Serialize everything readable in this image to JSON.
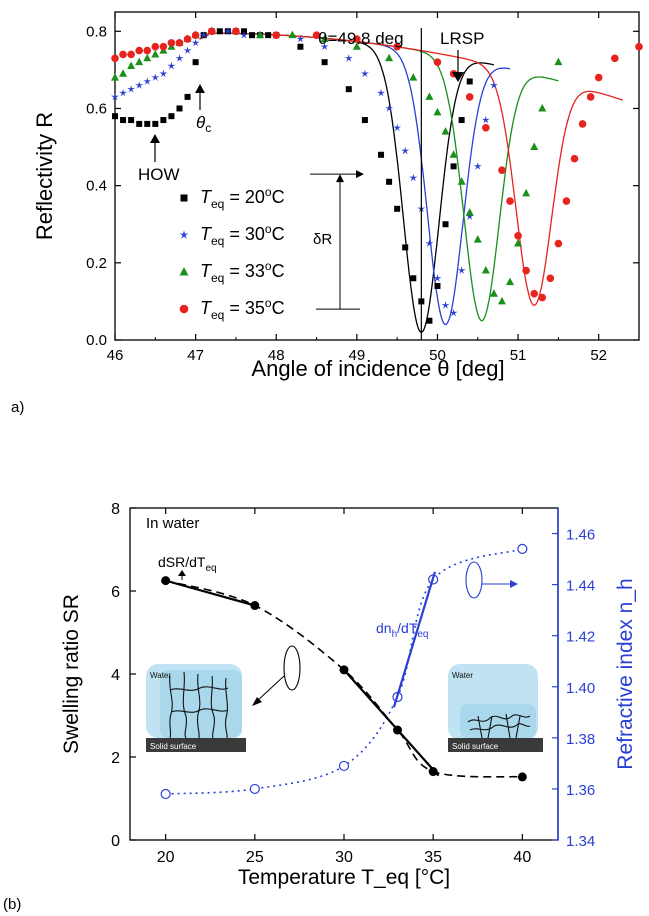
{
  "chart_data": [
    {
      "panel_label": "a)",
      "type": "scatter",
      "xlabel": "Angle of incidence θ [deg]",
      "ylabel": "Reflectivity R",
      "xlim": [
        46,
        52.5
      ],
      "ylim": [
        0.0,
        0.85
      ],
      "xticks": [
        "46",
        "47",
        "48",
        "49",
        "50",
        "51",
        "52"
      ],
      "yticks": [
        "0.0",
        "0.2",
        "0.4",
        "0.6",
        "0.8"
      ],
      "legend_position": "lower-left",
      "series": [
        {
          "name": "T_eq = 20°C",
          "label_text": "= 20",
          "marker": "square",
          "color": "#000000",
          "x": [
            46.0,
            46.1,
            46.2,
            46.3,
            46.4,
            46.5,
            46.6,
            46.7,
            46.8,
            46.9,
            47.0,
            47.1,
            47.2,
            47.3,
            47.4,
            47.5,
            47.6,
            47.7,
            47.8,
            47.9,
            48.0,
            48.3,
            48.6,
            48.9,
            49.1,
            49.3,
            49.4,
            49.5,
            49.6,
            49.7,
            49.8,
            49.9,
            50.0,
            50.1,
            50.2,
            50.3,
            50.4
          ],
          "y": [
            0.58,
            0.57,
            0.57,
            0.56,
            0.56,
            0.56,
            0.57,
            0.58,
            0.6,
            0.63,
            0.72,
            0.79,
            0.8,
            0.8,
            0.8,
            0.8,
            0.8,
            0.79,
            0.79,
            0.79,
            0.79,
            0.76,
            0.72,
            0.65,
            0.57,
            0.48,
            0.41,
            0.34,
            0.24,
            0.16,
            0.1,
            0.05,
            0.14,
            0.3,
            0.45,
            0.57,
            0.67
          ]
        },
        {
          "name": "T_eq = 30°C",
          "label_text": "= 30",
          "marker": "star",
          "color": "#2a3fd6",
          "x": [
            46.0,
            46.1,
            46.2,
            46.3,
            46.4,
            46.5,
            46.6,
            46.7,
            46.8,
            46.9,
            47.0,
            47.1,
            47.2,
            47.4,
            47.6,
            47.8,
            48.0,
            48.3,
            48.6,
            48.9,
            49.1,
            49.3,
            49.4,
            49.5,
            49.6,
            49.7,
            49.8,
            49.9,
            50.0,
            50.1,
            50.2,
            50.3,
            50.4,
            50.5,
            50.6,
            50.7
          ],
          "y": [
            0.63,
            0.64,
            0.65,
            0.66,
            0.67,
            0.68,
            0.69,
            0.71,
            0.73,
            0.75,
            0.77,
            0.79,
            0.8,
            0.8,
            0.79,
            0.79,
            0.79,
            0.78,
            0.76,
            0.73,
            0.69,
            0.64,
            0.6,
            0.55,
            0.49,
            0.42,
            0.34,
            0.25,
            0.16,
            0.09,
            0.07,
            0.18,
            0.32,
            0.45,
            0.57,
            0.66
          ]
        },
        {
          "name": "T_eq = 33°C",
          "label_text": "= 33",
          "marker": "triangle",
          "color": "#1a8f1a",
          "x": [
            46.0,
            46.1,
            46.2,
            46.3,
            46.4,
            46.5,
            46.6,
            46.7,
            46.8,
            46.9,
            47.0,
            47.2,
            47.5,
            47.8,
            48.2,
            48.6,
            49.0,
            49.4,
            49.7,
            49.9,
            50.0,
            50.1,
            50.2,
            50.3,
            50.4,
            50.5,
            50.6,
            50.7,
            50.8,
            50.9,
            51.0,
            51.1,
            51.2,
            51.3,
            51.5
          ],
          "y": [
            0.68,
            0.69,
            0.71,
            0.72,
            0.73,
            0.74,
            0.75,
            0.76,
            0.77,
            0.78,
            0.79,
            0.8,
            0.8,
            0.79,
            0.79,
            0.78,
            0.76,
            0.73,
            0.68,
            0.63,
            0.59,
            0.54,
            0.48,
            0.41,
            0.33,
            0.26,
            0.18,
            0.12,
            0.1,
            0.15,
            0.25,
            0.38,
            0.5,
            0.6,
            0.72
          ]
        },
        {
          "name": "T_eq = 35°C",
          "label_text": "= 35",
          "marker": "circle",
          "color": "#e8231e",
          "x": [
            46.0,
            46.1,
            46.2,
            46.3,
            46.4,
            46.5,
            46.6,
            46.7,
            46.8,
            46.9,
            47.0,
            47.2,
            47.5,
            48.0,
            48.5,
            49.0,
            49.5,
            50.0,
            50.2,
            50.4,
            50.6,
            50.8,
            50.9,
            51.0,
            51.1,
            51.2,
            51.3,
            51.4,
            51.5,
            51.6,
            51.7,
            51.8,
            51.9,
            52.0,
            52.2,
            52.5
          ],
          "y": [
            0.73,
            0.74,
            0.74,
            0.75,
            0.75,
            0.76,
            0.76,
            0.77,
            0.77,
            0.78,
            0.79,
            0.8,
            0.8,
            0.79,
            0.79,
            0.78,
            0.76,
            0.72,
            0.69,
            0.63,
            0.55,
            0.44,
            0.36,
            0.27,
            0.18,
            0.12,
            0.11,
            0.16,
            0.25,
            0.36,
            0.47,
            0.56,
            0.63,
            0.68,
            0.73,
            0.76
          ]
        }
      ],
      "fit_curves": [
        {
          "color": "#000000",
          "min_x": 49.8,
          "min_y": 0.02,
          "start_x": 47.05,
          "end_x": 50.7
        },
        {
          "color": "#2a3fd6",
          "min_x": 50.1,
          "min_y": 0.04,
          "start_x": 47.05,
          "end_x": 50.9
        },
        {
          "color": "#1a8f1a",
          "min_x": 50.55,
          "min_y": 0.05,
          "start_x": 47.05,
          "end_x": 51.5
        },
        {
          "color": "#e8231e",
          "min_x": 51.2,
          "min_y": 0.09,
          "start_x": 47.05,
          "end_x": 52.3
        }
      ],
      "legend_prefix": "T",
      "legend_subscript": "eq",
      "legend_unit": "C",
      "annotations": {
        "theta_line_label": "θ=49.8 deg",
        "theta_line_x": 49.8,
        "lrsp": "LRSP",
        "how": "HOW",
        "theta_c": "θ",
        "theta_c_sub": "c",
        "delta_r": "δR",
        "delta_r_top": 0.43,
        "delta_r_bottom": 0.08
      }
    },
    {
      "panel_label": "(b)",
      "type": "line",
      "xlabel": "Temperature T_eq [°C]",
      "ylabel_left": "Swelling ratio SR",
      "ylabel_right": "Refractive index n_h",
      "xlim": [
        18,
        42
      ],
      "ylim_left": [
        0,
        8
      ],
      "ylim_right": [
        1.34,
        1.47
      ],
      "xticks": [
        "20",
        "25",
        "30",
        "35",
        "40"
      ],
      "yticks_left": [
        "0",
        "2",
        "4",
        "6",
        "8"
      ],
      "yticks_right": [
        "1.34",
        "1.36",
        "1.38",
        "1.40",
        "1.42",
        "1.44",
        "1.46"
      ],
      "series": [
        {
          "name": "Swelling ratio SR",
          "axis": "left",
          "color": "#000000",
          "style": "dashed",
          "marker": "filled-circle",
          "x": [
            20,
            25,
            30,
            33,
            35,
            40
          ],
          "y": [
            6.25,
            5.65,
            4.1,
            2.65,
            1.65,
            1.52
          ]
        },
        {
          "name": "Refractive index n_h",
          "axis": "right",
          "color": "#2a3fd6",
          "style": "dotted",
          "marker": "open-circle",
          "x": [
            20,
            25,
            30,
            33,
            35,
            40
          ],
          "y": [
            1.358,
            1.36,
            1.369,
            1.396,
            1.442,
            1.454
          ]
        }
      ],
      "annotations": {
        "in_water": "In water",
        "dsr_label": "dSR/dT",
        "dsr_sub": "eq",
        "dn_label": "dn",
        "dn_sub1": "h",
        "dn_mid": "/dT",
        "dn_sub2": "eq",
        "inset_water_left": "Water",
        "inset_surface_left": "Solid surface",
        "inset_water_right": "Water",
        "inset_surface_right": "Solid surface"
      }
    }
  ],
  "colors": {
    "axis": "#000000",
    "right_axis": "#2a3fd6",
    "inset_water": "#bfe3f2",
    "inset_surface": "#3a3a3a"
  }
}
